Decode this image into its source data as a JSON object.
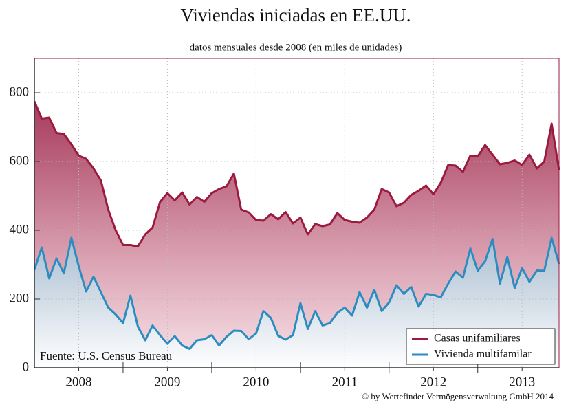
{
  "chart_data": {
    "type": "line",
    "title": "Viviendas iniciadas en EE.UU.",
    "subtitle": "datos mensuales desde 2008 (en miles de unidades)",
    "source": "Fuente: U.S. Census Bureau",
    "copyright": "© by Wertefinder Vermögensverwaltung GmbH 2014",
    "xlim": [
      2008,
      2013.917
    ],
    "xticks": [
      {
        "value": 2008.5,
        "label": "2008"
      },
      {
        "value": 2009.5,
        "label": "2009"
      },
      {
        "value": 2010.5,
        "label": "2010"
      },
      {
        "value": 2011.5,
        "label": "2011"
      },
      {
        "value": 2012.5,
        "label": "2012"
      },
      {
        "value": 2013.5,
        "label": "2013"
      }
    ],
    "xminorticks": [
      2009,
      2010,
      2011,
      2012,
      2013
    ],
    "ylim": [
      0,
      900
    ],
    "yticks": [
      0,
      200,
      400,
      600,
      800
    ],
    "grid": true,
    "legend": "lower right",
    "x": [
      2008,
      2008.083,
      2008.167,
      2008.25,
      2008.333,
      2008.417,
      2008.5,
      2008.583,
      2008.667,
      2008.75,
      2008.833,
      2008.917,
      2009,
      2009.083,
      2009.167,
      2009.25,
      2009.333,
      2009.417,
      2009.5,
      2009.583,
      2009.667,
      2009.75,
      2009.833,
      2009.917,
      2010,
      2010.083,
      2010.167,
      2010.25,
      2010.333,
      2010.417,
      2010.5,
      2010.583,
      2010.667,
      2010.75,
      2010.833,
      2010.917,
      2011,
      2011.083,
      2011.167,
      2011.25,
      2011.333,
      2011.417,
      2011.5,
      2011.583,
      2011.667,
      2011.75,
      2011.833,
      2011.917,
      2012,
      2012.083,
      2012.167,
      2012.25,
      2012.333,
      2012.417,
      2012.5,
      2012.583,
      2012.667,
      2012.75,
      2012.833,
      2012.917,
      2013,
      2013.083,
      2013.167,
      2013.25,
      2013.333,
      2013.417,
      2013.5,
      2013.583,
      2013.667,
      2013.75,
      2013.833,
      2013.917
    ],
    "series": [
      {
        "name": "Casas unifamiliares",
        "color": "#9b1b3f",
        "values": [
          775,
          725,
          728,
          683,
          680,
          650,
          617,
          608,
          580,
          545,
          460,
          400,
          357,
          357,
          353,
          388,
          408,
          482,
          508,
          487,
          510,
          475,
          497,
          483,
          508,
          520,
          528,
          565,
          460,
          452,
          430,
          428,
          447,
          432,
          453,
          420,
          437,
          388,
          418,
          412,
          417,
          450,
          430,
          425,
          422,
          437,
          460,
          520,
          510,
          470,
          480,
          503,
          515,
          530,
          505,
          538,
          590,
          588,
          570,
          617,
          615,
          648,
          620,
          592,
          596,
          603,
          590,
          620,
          580,
          600,
          710,
          575
        ]
      },
      {
        "name": "Vivienda multifamilar",
        "color": "#2b8cc0",
        "values": [
          285,
          350,
          260,
          318,
          275,
          378,
          295,
          222,
          265,
          220,
          175,
          155,
          130,
          210,
          120,
          80,
          123,
          95,
          70,
          92,
          65,
          55,
          80,
          83,
          95,
          65,
          90,
          108,
          107,
          83,
          100,
          165,
          145,
          93,
          82,
          95,
          188,
          113,
          165,
          123,
          130,
          160,
          175,
          152,
          220,
          175,
          227,
          165,
          190,
          240,
          215,
          235,
          178,
          215,
          212,
          205,
          245,
          280,
          262,
          347,
          282,
          310,
          375,
          245,
          322,
          232,
          290,
          250,
          283,
          282,
          378,
          302
        ]
      }
    ]
  }
}
